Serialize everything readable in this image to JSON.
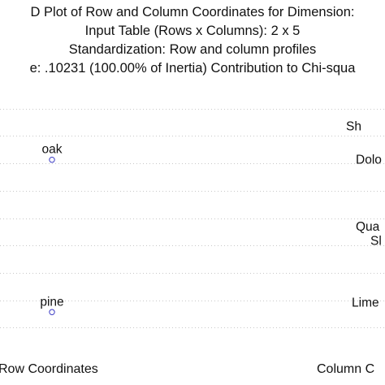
{
  "chart_data": {
    "type": "scatter",
    "title_lines": [
      "D Plot of Row and Column Coordinates for Dimension:",
      "Input Table (Rows x Columns): 2 x 5",
      "Standardization: Row and column profiles",
      "e: .10231 (100.00% of Inertia) Contribution to Chi-squa"
    ],
    "row_points": [
      {
        "label": "oak",
        "y": 0.29
      },
      {
        "label": "pine",
        "y": -0.35
      }
    ],
    "column_points": [
      {
        "label": "Sh",
        "y": 0.43
      },
      {
        "label": "Dolo",
        "y": 0.29
      },
      {
        "label": "Qua",
        "y": 0.01
      },
      {
        "label": "Sl",
        "y": -0.05
      },
      {
        "label": "Lime",
        "y": -0.31
      }
    ],
    "ylim": [
      -0.53,
      0.62
    ],
    "grid": true,
    "legend": [
      {
        "name": "Row Coordinates",
        "position": "bottom-left"
      },
      {
        "name": "Column C",
        "position": "bottom-right"
      }
    ],
    "colors": {
      "marker": "#3b3bc4",
      "grid": "#c8c8c8",
      "text": "#111111"
    }
  }
}
